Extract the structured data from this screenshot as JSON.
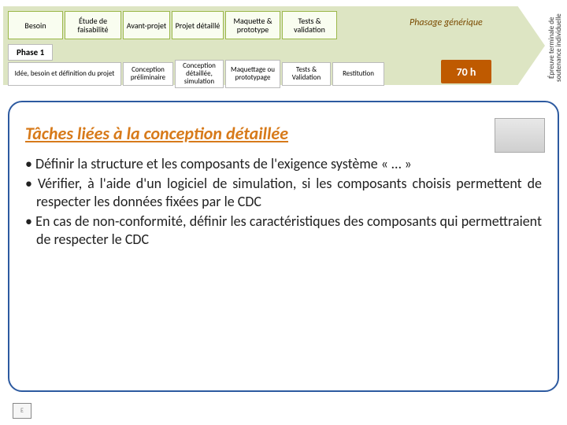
{
  "header": {
    "cells": [
      "Besoin",
      "Étude de faisabilité",
      "Avant-projet",
      "Projet détaillé",
      "Maquette & prototype",
      "Tests & validation"
    ],
    "phasage": "Phasage générique"
  },
  "phase": {
    "label": "Phase 1",
    "cells": [
      "Idée, besoin et définition du projet",
      "Conception préliminaire",
      "Conception détaillée, simulation",
      "Maquettage ou prototypage",
      "Tests & Validation",
      "Restitution"
    ],
    "hours": "70 h"
  },
  "side_label": "Épreuve terminale de soutenance individuelle",
  "section": {
    "title": "Tâches liées à la conception détaillée",
    "bullets": [
      "• Définir la structure et les composants de l'exigence système « … »",
      "• Vérifier, à l'aide d'un logiciel de simulation, si les composants choisis permettent de respecter les données fixées par le CDC",
      "• En cas de non-conformité, définir les caractéristiques des composants qui permettraient de respecter le CDC"
    ]
  },
  "colors": {
    "arrow_bg": "#8fa838",
    "header_cell_bg": "#f9fdf0",
    "header_cell_border": "#9bb84a",
    "frame_border": "#2d5aa0",
    "title_color": "#d77a1a",
    "badge_bg": "#bf5a00"
  }
}
